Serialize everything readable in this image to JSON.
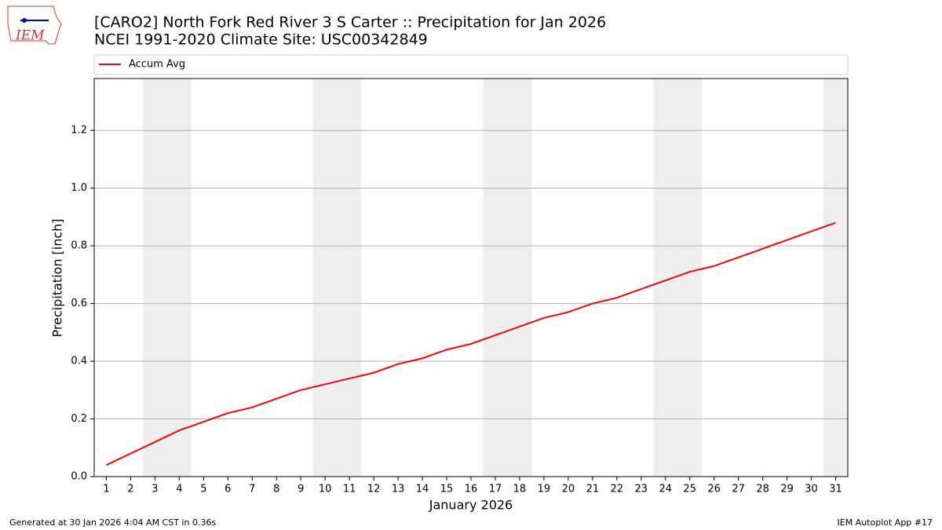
{
  "chart_data": {
    "type": "line",
    "title": "[CARO2] North Fork Red River 3 S Carter :: Precipitation for Jan 2026",
    "subtitle": "NCEI 1991-2020 Climate Site: USC00342849",
    "x_label": "January 2026",
    "y_label": "Precipitation [inch]",
    "x": [
      1,
      2,
      3,
      4,
      5,
      6,
      7,
      8,
      9,
      10,
      11,
      12,
      13,
      14,
      15,
      16,
      17,
      18,
      19,
      20,
      21,
      22,
      23,
      24,
      25,
      26,
      27,
      28,
      29,
      30,
      31
    ],
    "series": [
      {
        "name": "Accum Avg",
        "color": "#ff0000",
        "values": [
          0.04,
          0.08,
          0.12,
          0.16,
          0.19,
          0.22,
          0.24,
          0.27,
          0.3,
          0.32,
          0.34,
          0.36,
          0.39,
          0.41,
          0.44,
          0.46,
          0.49,
          0.52,
          0.55,
          0.57,
          0.6,
          0.62,
          0.65,
          0.68,
          0.71,
          0.73,
          0.76,
          0.79,
          0.82,
          0.85,
          0.88
        ]
      }
    ],
    "xlim": [
      0.5,
      31.5
    ],
    "xticks": [
      1,
      2,
      3,
      4,
      5,
      6,
      7,
      8,
      9,
      10,
      11,
      12,
      13,
      14,
      15,
      16,
      17,
      18,
      19,
      20,
      21,
      22,
      23,
      24,
      25,
      26,
      27,
      28,
      29,
      30,
      31
    ],
    "ylim": [
      0,
      1.38
    ],
    "yticks": [
      {
        "value": 0,
        "label": "0.0"
      },
      0.2,
      0.4,
      0.6,
      0.8,
      {
        "value": 1,
        "label": "1.0"
      },
      1.2
    ],
    "grid": true,
    "shaded_days": [
      3,
      4,
      10,
      11,
      17,
      18,
      24,
      25,
      31
    ],
    "legend": "top"
  },
  "footer": {
    "left": "Generated at 30 Jan 2026 4:04 AM CST in 0.36s",
    "right": "IEM Autoplot App #17"
  },
  "logo": "IEM"
}
